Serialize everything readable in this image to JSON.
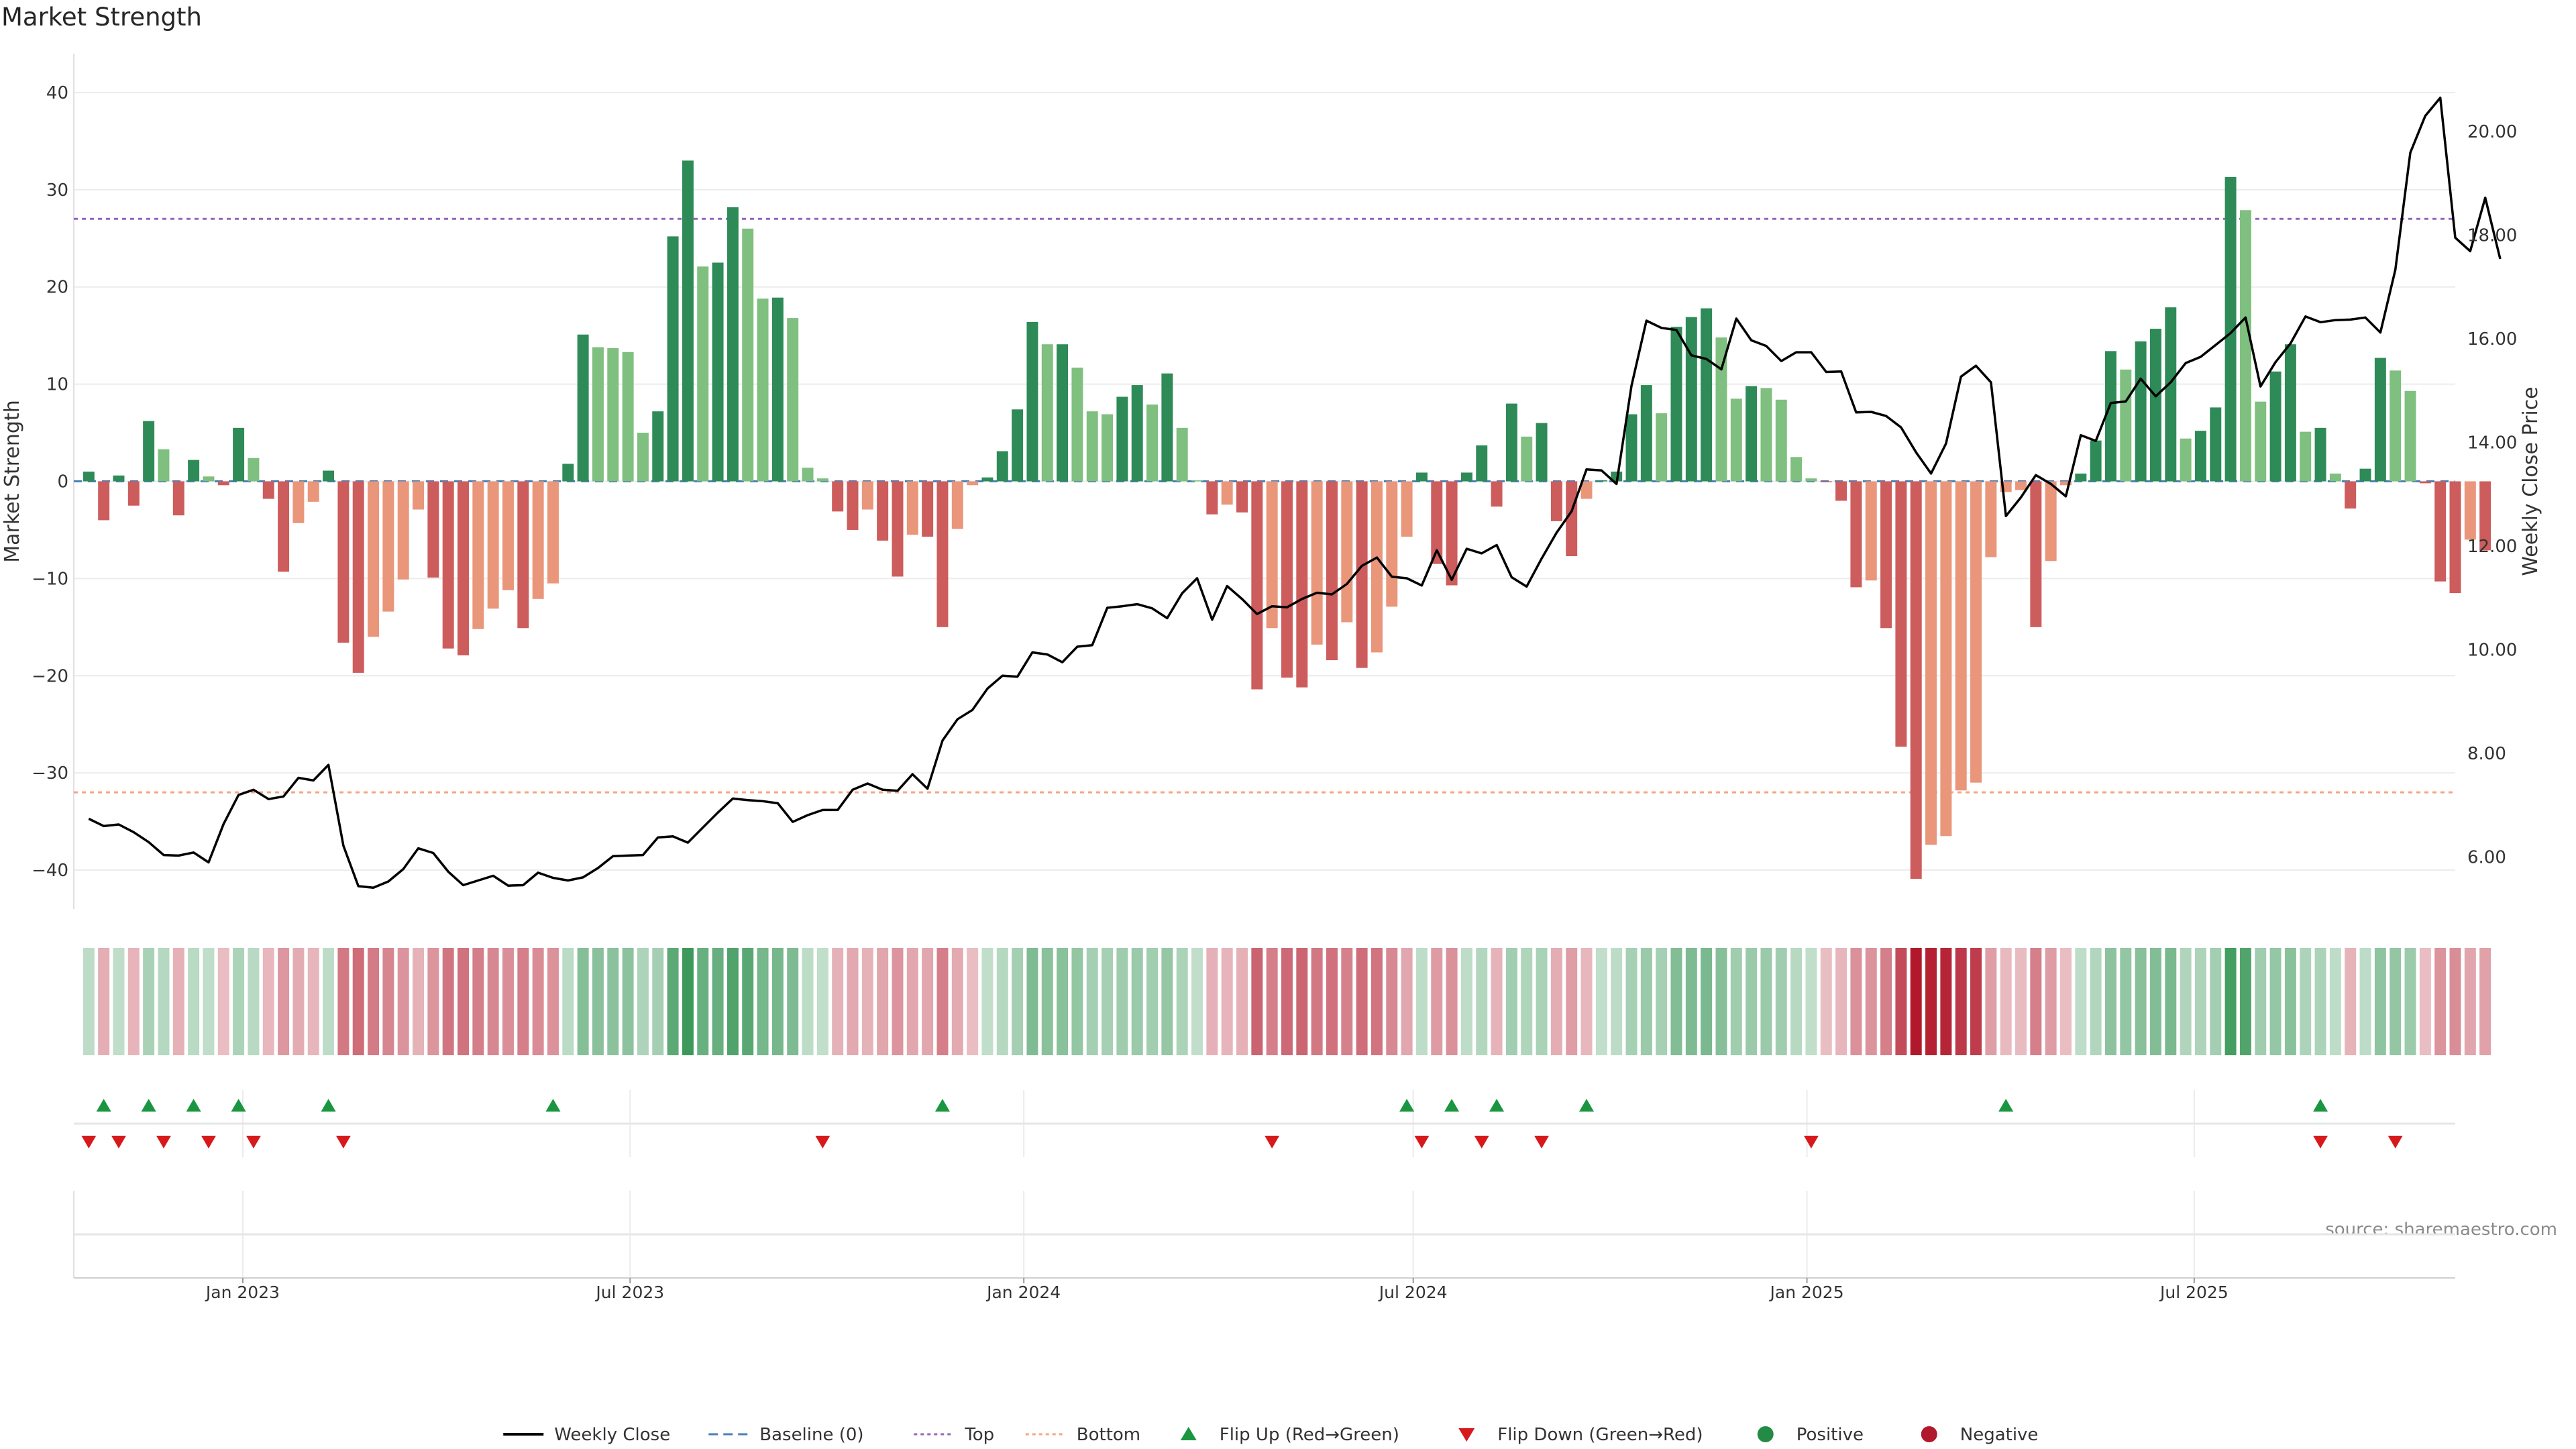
{
  "title": "Market Strength",
  "source": "source: sharemaestro.com",
  "chart_data": {
    "type": "bar",
    "x_axis": {
      "range": [
        "2022-10-14",
        "2025-10-31"
      ],
      "ticks": [
        {
          "date": "2023-01-01",
          "label": "Jan 2023"
        },
        {
          "date": "2023-07-01",
          "label": "Jul 2023"
        },
        {
          "date": "2024-01-01",
          "label": "Jan 2024"
        },
        {
          "date": "2024-07-01",
          "label": "Jul 2024"
        },
        {
          "date": "2025-01-01",
          "label": "Jan 2025"
        },
        {
          "date": "2025-07-01",
          "label": "Jul 2025"
        }
      ]
    },
    "y_left": {
      "label": "Market Strength",
      "range": [
        -44,
        44
      ],
      "ticks": [
        -40,
        -30,
        -20,
        -10,
        0,
        10,
        20,
        30,
        40
      ]
    },
    "y_right": {
      "label": "Weekly Close Price",
      "range": [
        5.0,
        21.5
      ],
      "ticks": [
        "6.00",
        "8.00",
        "10.00",
        "12.00",
        "14.00",
        "16.00",
        "18.00",
        "20.00"
      ]
    },
    "top_level": 27,
    "bottom_level": -32,
    "baseline": 0,
    "week_start": "2022-10-21",
    "strength": [
      1,
      -4,
      0.6,
      -2.5,
      6.2,
      3.3,
      -3.5,
      2.2,
      0.5,
      -0.4,
      5.5,
      2.4,
      -1.8,
      -9.3,
      -4.3,
      -2.1,
      1.1,
      -16.6,
      -19.7,
      -16,
      -13.4,
      -10.1,
      -2.9,
      -9.9,
      -17.2,
      -17.9,
      -15.2,
      -13.1,
      -11.2,
      -15.1,
      -12.1,
      -10.5,
      1.8,
      15.1,
      13.8,
      13.7,
      13.3,
      5,
      7.2,
      25.2,
      33,
      22.1,
      22.5,
      28.2,
      26,
      18.8,
      18.9,
      16.8,
      1.4,
      0.3,
      -3.1,
      -5,
      -2.9,
      -6.1,
      -9.8,
      -5.5,
      -5.7,
      -15,
      -4.9,
      -0.4,
      0.4,
      3.1,
      7.4,
      16.4,
      14.1,
      14.1,
      11.7,
      7.2,
      6.9,
      8.7,
      9.9,
      7.9,
      11.1,
      5.5,
      0.1,
      -3.4,
      -2.4,
      -3.2,
      -21.4,
      -15.1,
      -20.2,
      -21.2,
      -16.8,
      -18.4,
      -14.5,
      -19.2,
      -17.6,
      -12.9,
      -5.7,
      0.9,
      -8.5,
      -10.7,
      0.9,
      3.7,
      -2.6,
      8,
      4.6,
      6,
      -4.1,
      -7.7,
      -1.8,
      0.1,
      1,
      6.9,
      9.9,
      7,
      15.9,
      16.9,
      17.8,
      14.8,
      8.5,
      9.8,
      9.6,
      8.4,
      2.5,
      0.3,
      -0.1,
      -2,
      -10.9,
      -10.2,
      -15.1,
      -27.3,
      -40.9,
      -37.4,
      -36.5,
      -31.8,
      -31,
      -7.8,
      -1.1,
      -0.9,
      -15,
      -8.2,
      -0.4,
      0.8,
      4.2,
      13.4,
      11.5,
      14.4,
      15.7,
      17.9,
      4.4,
      5.2,
      7.6,
      31.3,
      27.9,
      8.2,
      11.3,
      14.1,
      5.1,
      5.5,
      0.8,
      -2.8,
      1.3,
      12.7,
      11.4,
      9.3,
      -0.2,
      -10.3,
      -11.5,
      -6,
      -7.1
    ],
    "weekly_close": [
      6.74,
      6.6,
      6.63,
      6.48,
      6.29,
      6.04,
      6.03,
      6.09,
      5.9,
      6.64,
      7.2,
      7.3,
      7.12,
      7.17,
      7.53,
      7.48,
      7.78,
      6.22,
      5.44,
      5.41,
      5.53,
      5.77,
      6.17,
      6.08,
      5.72,
      5.46,
      5.55,
      5.64,
      5.45,
      5.46,
      5.7,
      5.6,
      5.55,
      5.61,
      5.79,
      6.02,
      6.03,
      6.04,
      6.38,
      6.4,
      6.28,
      6.57,
      6.86,
      7.13,
      7.1,
      7.08,
      7.04,
      6.68,
      6.81,
      6.91,
      6.91,
      7.3,
      7.42,
      7.3,
      7.28,
      7.6,
      7.32,
      8.25,
      8.66,
      8.84,
      9.25,
      9.5,
      9.48,
      9.95,
      9.91,
      9.76,
      10.06,
      10.09,
      10.81,
      10.84,
      10.88,
      10.8,
      10.61,
      11.09,
      11.38,
      10.58,
      11.23,
      10.98,
      10.69,
      10.84,
      10.82,
      10.98,
      11.1,
      11.07,
      11.27,
      11.62,
      11.78,
      11.41,
      11.38,
      11.24,
      11.92,
      11.35,
      11.95,
      11.86,
      12.02,
      11.4,
      11.22,
      11.76,
      12.26,
      12.67,
      13.48,
      13.46,
      13.2,
      15.09,
      16.35,
      16.21,
      16.17,
      15.68,
      15.61,
      15.41,
      16.39,
      15.97,
      15.86,
      15.57,
      15.74,
      15.74,
      15.36,
      15.37,
      14.58,
      14.59,
      14.51,
      14.29,
      13.81,
      13.4,
      13.98,
      15.27,
      15.48,
      15.16,
      12.58,
      12.94,
      13.37,
      13.2,
      12.96,
      14.14,
      14.03,
      14.76,
      14.79,
      15.23,
      14.89,
      15.16,
      15.53,
      15.65,
      15.88,
      16.11,
      16.41,
      15.08,
      15.55,
      15.91,
      16.43,
      16.32,
      16.36,
      16.37,
      16.41,
      16.12,
      17.33,
      19.59,
      20.3,
      20.65,
      17.95,
      17.69,
      18.72,
      17.54
    ],
    "flip_up_dates": [
      "2022-10-28",
      "2022-11-18",
      "2022-12-09",
      "2022-12-30",
      "2023-02-10",
      "2023-05-26",
      "2023-11-24",
      "2024-06-28",
      "2024-07-19",
      "2024-08-09",
      "2024-09-20",
      "2025-04-04",
      "2025-08-29"
    ],
    "flip_down_dates": [
      "2022-10-21",
      "2022-11-04",
      "2022-11-25",
      "2022-12-16",
      "2023-01-06",
      "2023-02-17",
      "2023-09-29",
      "2024-04-26",
      "2024-07-05",
      "2024-08-02",
      "2024-08-30",
      "2025-01-03",
      "2025-08-29",
      "2025-10-03"
    ],
    "colors": {
      "strong_green": "#2e8b57",
      "light_green": "#7fbf7f",
      "strong_red": "#cd5c5c",
      "light_red": "#e9967a",
      "flip_up": "#1a9641",
      "flip_down": "#d7191c",
      "positive": "#238b45",
      "negative": "#b2182b",
      "top": "#9467bd",
      "bottom": "#f4a582",
      "baseline": "#4a7fb5",
      "price": "#000000"
    },
    "legend": {
      "position": "bottom-center",
      "items": [
        {
          "label": "Weekly Close",
          "style": "solid-line",
          "color": "#000000"
        },
        {
          "label": "Baseline (0)",
          "style": "dashed-line",
          "color": "#4a7fb5"
        },
        {
          "label": "Top",
          "style": "dotted-line",
          "color": "#9467bd"
        },
        {
          "label": "Bottom",
          "style": "dotted-line",
          "color": "#f4a582"
        },
        {
          "label": "Flip Up (Red→Green)",
          "style": "triangle-up",
          "color": "#1a9641"
        },
        {
          "label": "Flip Down (Green→Red)",
          "style": "triangle-down",
          "color": "#d7191c"
        },
        {
          "label": "Positive",
          "style": "dot",
          "color": "#238b45"
        },
        {
          "label": "Negative",
          "style": "dot",
          "color": "#b2182b"
        }
      ]
    }
  }
}
